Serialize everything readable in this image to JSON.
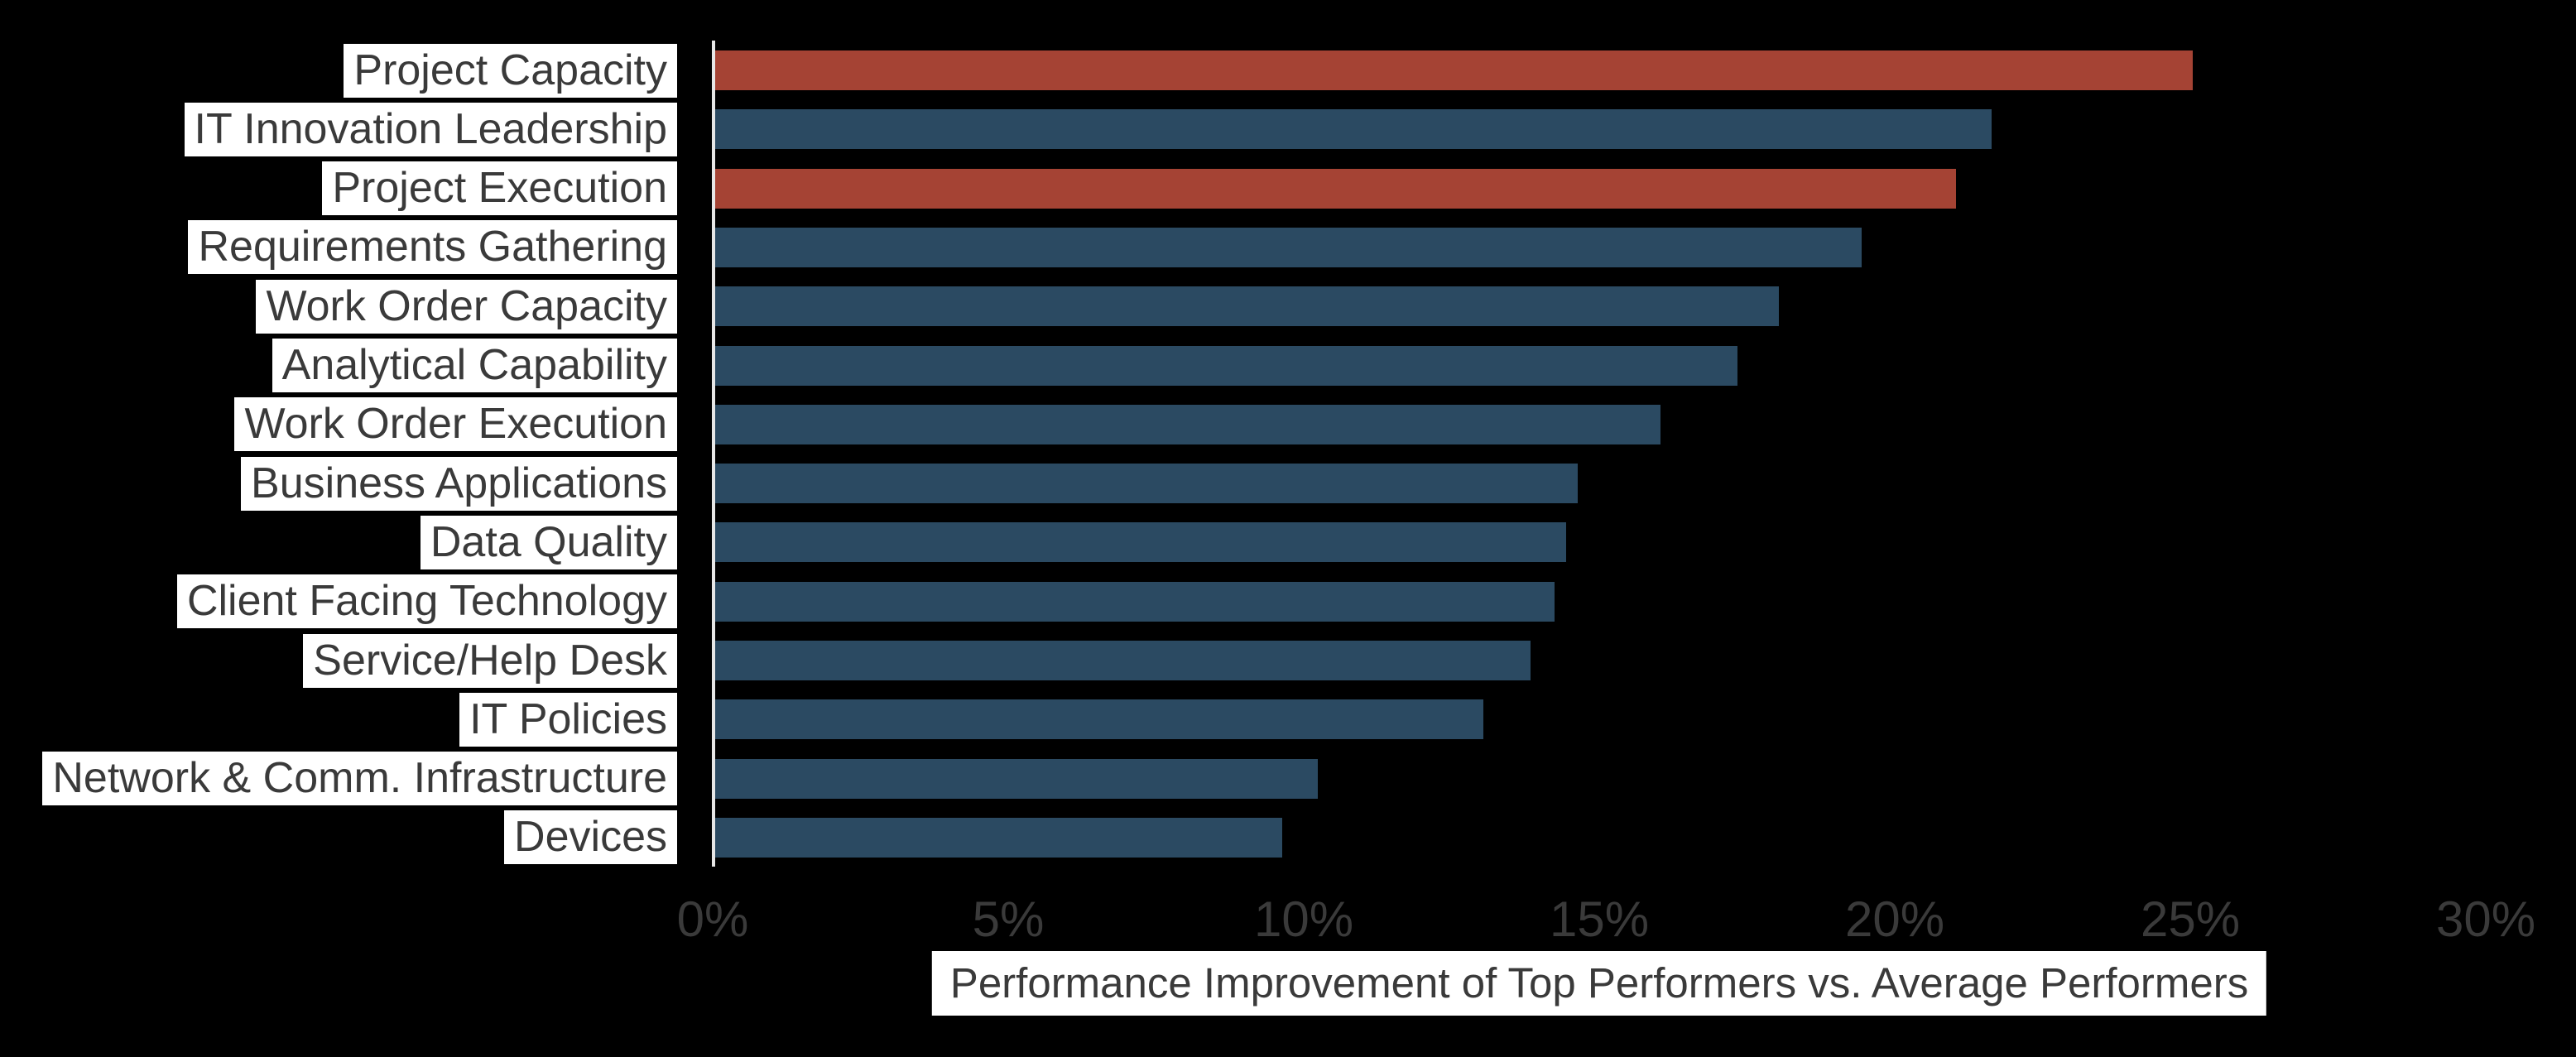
{
  "chart_data": {
    "type": "bar",
    "orientation": "horizontal",
    "title": "",
    "xlabel": "Performance Improvement of Top Performers vs. Average Performers",
    "ylabel": "",
    "xlim": [
      0,
      30
    ],
    "grid": false,
    "legend": false,
    "x_tick_labels": [
      "0%",
      "5%",
      "10%",
      "15%",
      "20%",
      "25%",
      "30%"
    ],
    "x_tick_values": [
      0,
      5,
      10,
      15,
      20,
      25,
      30
    ],
    "categories": [
      "Project Capacity",
      "IT Innovation Leadership",
      "Project Execution",
      "Requirements Gathering",
      "Work Order Capacity",
      "Analytical Capability",
      "Work Order Execution",
      "Business Applications",
      "Data Quality",
      "Client Facing Technology",
      "Service/Help Desk",
      "IT Policies",
      "Network & Comm. Infrastructure",
      "Devices"
    ],
    "values": [
      25.0,
      21.6,
      21.0,
      19.4,
      18.0,
      17.3,
      16.0,
      14.6,
      14.4,
      14.2,
      13.8,
      13.0,
      10.2,
      9.6
    ],
    "highlighted": [
      true,
      false,
      true,
      false,
      false,
      false,
      false,
      false,
      false,
      false,
      false,
      false,
      false,
      false
    ],
    "highlighted_categories": [
      "Project Capacity",
      "Project Execution"
    ],
    "colors": {
      "bar_default": "#2B4A62",
      "bar_highlight": "#A54334",
      "background": "#000000",
      "category_label_bg": "#FFFFFF",
      "category_label_text": "#3A3A3A",
      "tick_text": "#3A3A3A",
      "axis_line": "#E7E7E7",
      "xlabel_bg": "#FFFFFF",
      "xlabel_text": "#3A3A3A"
    }
  }
}
